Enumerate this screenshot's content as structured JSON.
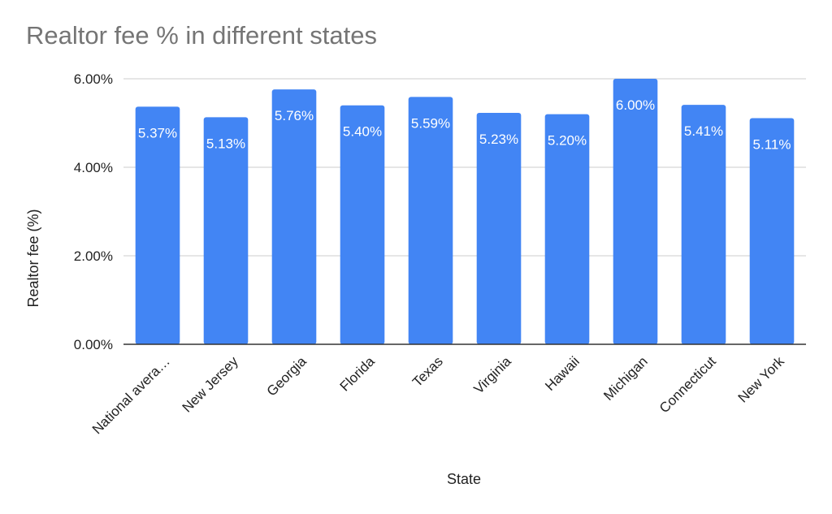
{
  "chart_data": {
    "type": "bar",
    "title": "Realtor fee % in different states",
    "xlabel": "State",
    "ylabel": "Realtor fee (%)",
    "categories": [
      "National avera…",
      "New Jersey",
      "Georgia",
      "Florida",
      "Texas",
      "Virginia",
      "Hawaii",
      "Michigan",
      "Connecticut",
      "New York"
    ],
    "values": [
      5.37,
      5.13,
      5.76,
      5.4,
      5.59,
      5.23,
      5.2,
      6.0,
      5.41,
      5.11
    ],
    "data_labels": [
      "5.37%",
      "5.13%",
      "5.76%",
      "5.40%",
      "5.59%",
      "5.23%",
      "5.20%",
      "6.00%",
      "5.41%",
      "5.11%"
    ],
    "yticks": [
      "0.00%",
      "2.00%",
      "4.00%",
      "6.00%"
    ],
    "ytick_values": [
      0,
      2,
      4,
      6
    ],
    "ylim": [
      0,
      6
    ],
    "grid": true,
    "legend": "none",
    "bar_color": "#4285f4",
    "grid_color": "#cccccc"
  }
}
